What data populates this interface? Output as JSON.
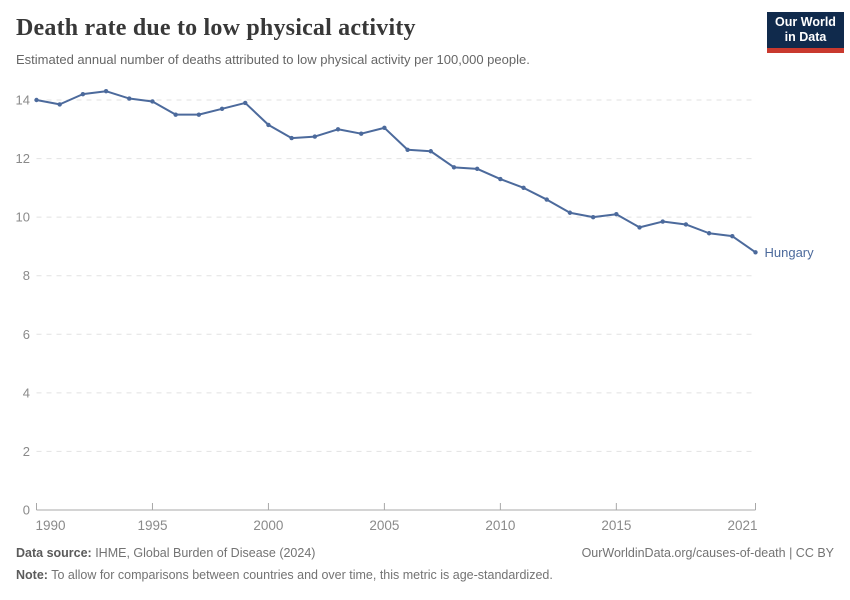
{
  "header": {
    "title": "Death rate due to low physical activity",
    "subtitle": "Estimated annual number of deaths attributed to low physical activity per 100,000 people.",
    "logo": {
      "line1": "Our World",
      "line2": "in Data"
    }
  },
  "chart_data": {
    "type": "line",
    "title": "Death rate due to low physical activity",
    "xlabel": "",
    "ylabel": "",
    "x": [
      1990,
      1991,
      1992,
      1993,
      1994,
      1995,
      1996,
      1997,
      1998,
      1999,
      2000,
      2001,
      2002,
      2003,
      2004,
      2005,
      2006,
      2007,
      2008,
      2009,
      2010,
      2011,
      2012,
      2013,
      2014,
      2015,
      2016,
      2017,
      2018,
      2019,
      2020,
      2021
    ],
    "series": [
      {
        "name": "Hungary",
        "color": "#4C6A9C",
        "values": [
          14.0,
          13.85,
          14.2,
          14.3,
          14.05,
          13.95,
          13.5,
          13.5,
          13.7,
          13.9,
          13.15,
          12.7,
          12.75,
          13.0,
          12.85,
          13.05,
          12.3,
          12.25,
          11.7,
          11.65,
          11.3,
          11.0,
          10.6,
          10.15,
          10.0,
          10.1,
          9.65,
          9.85,
          9.75,
          9.45,
          9.35,
          8.8
        ]
      }
    ],
    "ylim": [
      0,
      14
    ],
    "yticks": [
      0,
      2,
      4,
      6,
      8,
      10,
      12,
      14
    ],
    "xticks": [
      1990,
      1995,
      2000,
      2005,
      2010,
      2015,
      2021
    ],
    "grid": "horizontal-dashed",
    "legend_position": "end-of-line"
  },
  "footer": {
    "datasource_label": "Data source:",
    "datasource_text": " IHME, Global Burden of Disease (2024)",
    "note_label": "Note:",
    "note_text": " To allow for comparisons between countries and over time, this metric is age-standardized.",
    "link": "OurWorldinData.org/causes-of-death | CC BY"
  },
  "colors": {
    "line": "#4C6A9C",
    "grid": "#e2e2e2",
    "axis": "#a8a8a8",
    "tick_text": "#8a8a8a",
    "title": "#383838",
    "subtitle": "#666666",
    "footer": "#737373",
    "logo_bg": "#102A4C",
    "logo_red": "#C9392E"
  }
}
